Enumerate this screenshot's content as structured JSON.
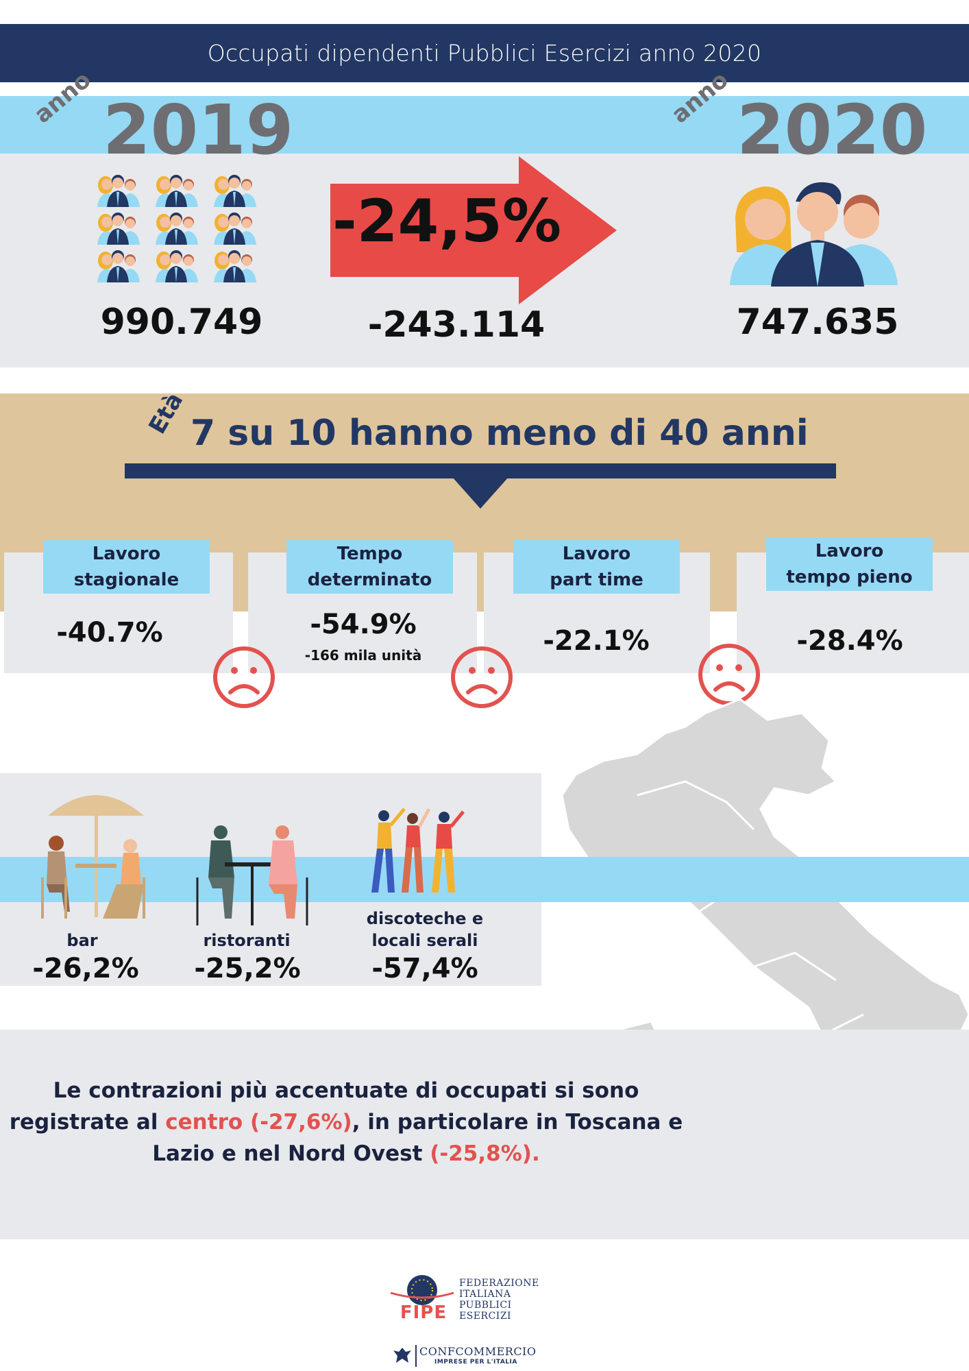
{
  "header": {
    "title": "Occupati dipendenti Pubblici Esercizi anno 2020"
  },
  "years": {
    "prev": {
      "anno": "anno",
      "year": "2019",
      "value": "990.749"
    },
    "curr": {
      "anno": "anno",
      "year": "2020",
      "value": "747.635"
    },
    "change_pct": "-24,5%",
    "change_abs": "-243.114"
  },
  "age": {
    "eta": "Età",
    "title": "7 su 10 hanno meno di 40 anni"
  },
  "contracts": [
    {
      "label1": "Lavoro",
      "label2": "stagionale",
      "pct": "-40.7%",
      "note": ""
    },
    {
      "label1": "Tempo",
      "label2": "determinato",
      "pct": "-54.9%",
      "note": "-166 mila unità"
    },
    {
      "label1": "Lavoro",
      "label2": "part time",
      "pct": "-22.1%",
      "note": ""
    },
    {
      "label1": "Lavoro",
      "label2": "tempo pieno",
      "pct": "-28.4%",
      "note": ""
    }
  ],
  "sectors": [
    {
      "label1": "",
      "label2": "bar",
      "pct": "-26,2%"
    },
    {
      "label1": "",
      "label2": "ristoranti",
      "pct": "-25,2%"
    },
    {
      "label1": "discoteche e",
      "label2": "locali serali",
      "pct": "-57,4%"
    }
  ],
  "bottom": {
    "line1": "Le contrazioni più accentuate di occupati si sono",
    "line2_a": "registrate al ",
    "line2_red": "centro (-27,6%)",
    "line2_b": ", in particolare in Toscana e",
    "line3_a": "Lazio e nel Nord Ovest ",
    "line3_red": "(-25,8%)."
  },
  "logo": {
    "fipe": "FIPE",
    "fed1": "FEDERAZIONE",
    "fed2": "ITALIANA",
    "fed3": "PUBBLICI",
    "fed4": "ESERCIZI",
    "confcommercio": "CONFCOMMERCIO",
    "tagline": "IMPRESE PER L'ITALIA"
  },
  "colors": {
    "navy": "#223763",
    "light_blue": "#96d9f4",
    "tan": "#dfc59b",
    "red": "#e2524f",
    "grey_panel": "#e8e9ec"
  }
}
